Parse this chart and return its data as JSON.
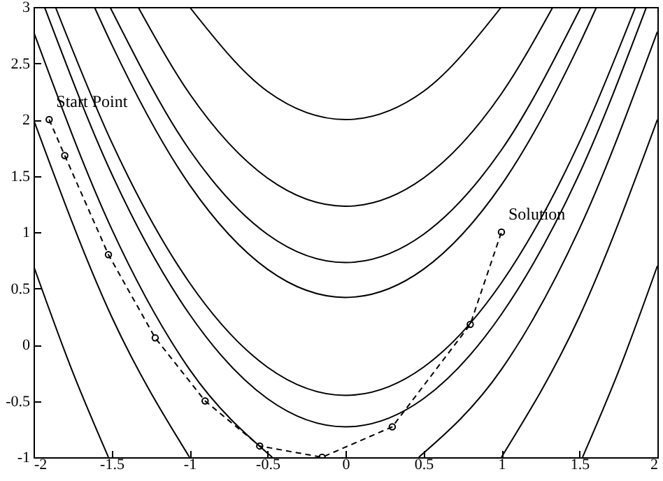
{
  "chart_data": {
    "type": "line",
    "xlim": [
      -2,
      2
    ],
    "ylim": [
      -1,
      3
    ],
    "xticks": [
      -2,
      -1.5,
      -1,
      -0.5,
      0,
      0.5,
      1,
      1.5,
      2
    ],
    "yticks": [
      -1,
      -0.5,
      0,
      0.5,
      1,
      1.5,
      2,
      2.5,
      3
    ],
    "grid": false,
    "annotations": [
      {
        "text": "Start Point",
        "x": -1.9,
        "y": 2
      },
      {
        "text": "Solution",
        "x": 1,
        "y": 1
      }
    ],
    "series": [
      {
        "color": "#000000",
        "line_style": "dashed",
        "marker": "circle",
        "x": [
          -1.9,
          -1.8,
          -1.52,
          -1.22,
          -0.9,
          -0.55,
          -0.15,
          0.3,
          0.8,
          1
        ],
        "values": [
          2,
          1.68,
          0.8,
          0.06,
          -0.5,
          -0.9,
          -1,
          -0.73,
          0.18,
          1
        ]
      },
      {
        "color": "#000000",
        "line_style": "solid",
        "marker": "none",
        "x": [
          -1,
          -0.5,
          0,
          0.5,
          1
        ],
        "values": [
          3,
          2.25,
          2,
          2.25,
          3
        ]
      },
      {
        "color": "#000000",
        "line_style": "solid",
        "marker": "none",
        "x": [
          -1.33,
          -1,
          -0.5,
          0,
          0.5,
          1,
          1.33
        ],
        "values": [
          3,
          2.23,
          1.48,
          1.23,
          1.48,
          2.23,
          3
        ]
      },
      {
        "color": "#000000",
        "line_style": "solid",
        "marker": "none",
        "x": [
          -1.51,
          -1,
          -0.5,
          0,
          0.5,
          1,
          1.51
        ],
        "values": [
          3,
          1.73,
          0.98,
          0.73,
          0.98,
          1.73,
          3
        ]
      },
      {
        "color": "#000000",
        "line_style": "solid",
        "marker": "none",
        "x": [
          -1.61,
          -1.5,
          -1,
          -0.5,
          0,
          0.5,
          1,
          1.5,
          1.61
        ],
        "values": [
          3,
          2.67,
          1.42,
          0.67,
          0.42,
          0.67,
          1.42,
          2.67,
          3
        ]
      },
      {
        "color": "#000000",
        "line_style": "solid",
        "marker": "none",
        "x": [
          -1.86,
          -1.5,
          -1,
          -0.5,
          0,
          0.5,
          1,
          1.5,
          1.86
        ],
        "values": [
          3,
          1.8,
          0.55,
          -0.2,
          -0.45,
          -0.2,
          0.55,
          1.8,
          3
        ]
      },
      {
        "color": "#000000",
        "line_style": "solid",
        "marker": "none",
        "x": [
          -1.93,
          -1.5,
          -1,
          -0.5,
          0,
          0.5,
          1,
          1.5,
          1.93
        ],
        "values": [
          3,
          1.52,
          0.27,
          -0.48,
          -0.73,
          -0.48,
          0.27,
          1.52,
          3
        ]
      },
      {
        "color": "#000000",
        "line_style": "solid",
        "marker": "none",
        "x": [
          -2,
          -1.5,
          -1,
          -0.47
        ],
        "values": [
          2.78,
          1.03,
          -0.22,
          -1
        ]
      },
      {
        "color": "#000000",
        "line_style": "solid",
        "marker": "none",
        "x": [
          0.47,
          1,
          1.5,
          2
        ],
        "values": [
          -1,
          -0.22,
          1.03,
          2.78
        ]
      },
      {
        "color": "#000000",
        "line_style": "solid",
        "marker": "none",
        "x": [
          -2,
          -1.5,
          -1
        ],
        "values": [
          2,
          0.25,
          -1
        ]
      },
      {
        "color": "#000000",
        "line_style": "solid",
        "marker": "none",
        "x": [
          1,
          1.5,
          2
        ],
        "values": [
          -1,
          0.25,
          2
        ]
      },
      {
        "color": "#000000",
        "line_style": "solid",
        "marker": "none",
        "x": [
          -2,
          -1.75,
          -1.52
        ],
        "values": [
          0.7,
          -0.24,
          -1
        ]
      },
      {
        "color": "#000000",
        "line_style": "solid",
        "marker": "none",
        "x": [
          1.52,
          1.75,
          2
        ],
        "values": [
          -1,
          -0.24,
          0.7
        ]
      }
    ]
  }
}
